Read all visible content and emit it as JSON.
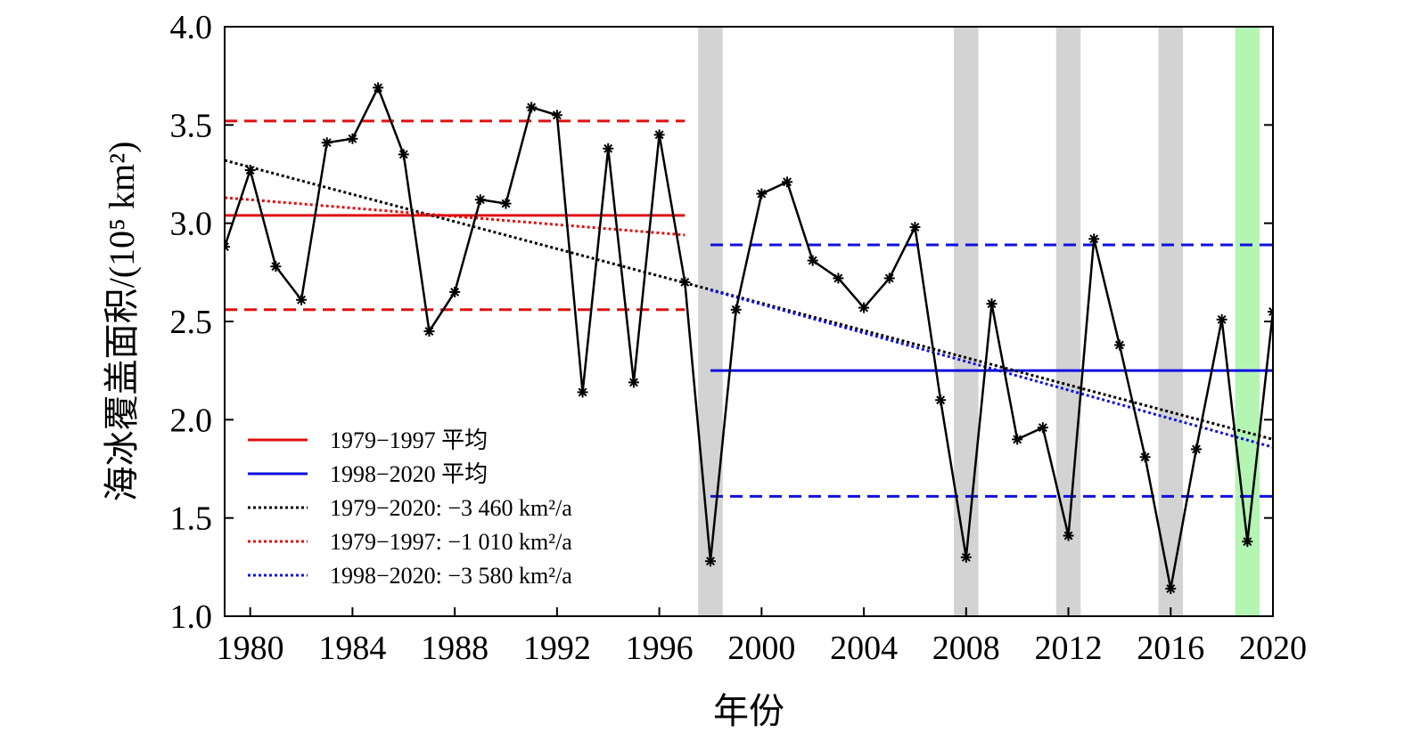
{
  "chart_data": {
    "type": "line",
    "xlabel": "年份",
    "ylabel": "海冰覆盖面积/(10⁵ km²)",
    "xlim": [
      1979,
      2020
    ],
    "ylim": [
      1.0,
      4.0
    ],
    "x_ticks": [
      1980,
      1984,
      1988,
      1992,
      1996,
      2000,
      2004,
      2008,
      2012,
      2016,
      2020
    ],
    "y_ticks": [
      "1.0",
      "1.5",
      "2.0",
      "2.5",
      "3.0",
      "3.5",
      "4.0"
    ],
    "series": [
      {
        "x": [
          1979,
          1980,
          1981,
          1982,
          1983,
          1984,
          1985,
          1986,
          1987,
          1988,
          1989,
          1990,
          1991,
          1992,
          1993,
          1994,
          1995,
          1996,
          1997,
          1998,
          1999,
          2000,
          2001,
          2002,
          2003,
          2004,
          2005,
          2006,
          2007,
          2008,
          2009,
          2010,
          2011,
          2012,
          2013,
          2014,
          2015,
          2016,
          2017,
          2018,
          2019,
          2020
        ],
        "values": [
          2.88,
          3.27,
          2.78,
          2.61,
          3.41,
          3.43,
          3.69,
          3.35,
          2.45,
          2.65,
          3.12,
          3.1,
          3.59,
          3.55,
          2.14,
          3.38,
          2.19,
          3.45,
          2.7,
          1.28,
          2.56,
          3.15,
          3.21,
          2.81,
          2.72,
          2.57,
          2.72,
          2.98,
          2.1,
          1.3,
          2.59,
          1.9,
          1.96,
          1.41,
          2.92,
          2.38,
          1.81,
          1.14,
          1.85,
          2.51,
          1.38,
          2.55
        ],
        "color": "#000000",
        "marker": "asterisk"
      }
    ],
    "reference_lines": [
      {
        "name": "1979−1997 平均",
        "x": [
          1979,
          1997
        ],
        "value": 3.04,
        "color": "#e01010",
        "style": "solid"
      },
      {
        "x": [
          1979,
          1997
        ],
        "value": 3.52,
        "color": "#e01010",
        "style": "dashed"
      },
      {
        "x": [
          1979,
          1997
        ],
        "value": 2.56,
        "color": "#e01010",
        "style": "dashed"
      },
      {
        "name": "1998−2020 平均",
        "x": [
          1998,
          2020
        ],
        "value": 2.25,
        "color": "#1010e0",
        "style": "solid"
      },
      {
        "x": [
          1998,
          2020
        ],
        "value": 2.89,
        "color": "#1010e0",
        "style": "dashed"
      },
      {
        "x": [
          1998,
          2020
        ],
        "value": 1.61,
        "color": "#1010e0",
        "style": "dashed"
      }
    ],
    "trend_lines": [
      {
        "name": "1979−2020: −3 460 km²/a",
        "x": [
          1979,
          2020
        ],
        "y": [
          3.32,
          1.9
        ],
        "color": "#000000",
        "style": "dotted"
      },
      {
        "name": "1979−1997: −1 010 km²/a",
        "x": [
          1979,
          1997
        ],
        "y": [
          3.13,
          2.94
        ],
        "color": "#e01010",
        "style": "dotted"
      },
      {
        "name": "1998−2020: −3 580 km²/a",
        "x": [
          1998,
          2020
        ],
        "y": [
          2.66,
          1.86
        ],
        "color": "#1010e0",
        "style": "dotted"
      }
    ],
    "highlight_years": [
      {
        "year": 1998,
        "color": "#d3d3d3"
      },
      {
        "year": 2008,
        "color": "#d3d3d3"
      },
      {
        "year": 2012,
        "color": "#d3d3d3"
      },
      {
        "year": 2016,
        "color": "#d3d3d3"
      },
      {
        "year": 2019,
        "color": "#b4f5b4"
      }
    ],
    "legend": {
      "placement": "lower-left",
      "entries": [
        {
          "label": "1979−1997 平均",
          "color": "#e01010",
          "style": "solid"
        },
        {
          "label": "1998−2020 平均",
          "color": "#1010e0",
          "style": "solid"
        },
        {
          "label": "1979−2020: −3 460 km²/a",
          "color": "#000000",
          "style": "dotted"
        },
        {
          "label": "1979−1997: −1 010 km²/a",
          "color": "#e01010",
          "style": "dotted"
        },
        {
          "label": "1998−2020: −3 580 km²/a",
          "color": "#1010e0",
          "style": "dotted"
        }
      ]
    }
  }
}
